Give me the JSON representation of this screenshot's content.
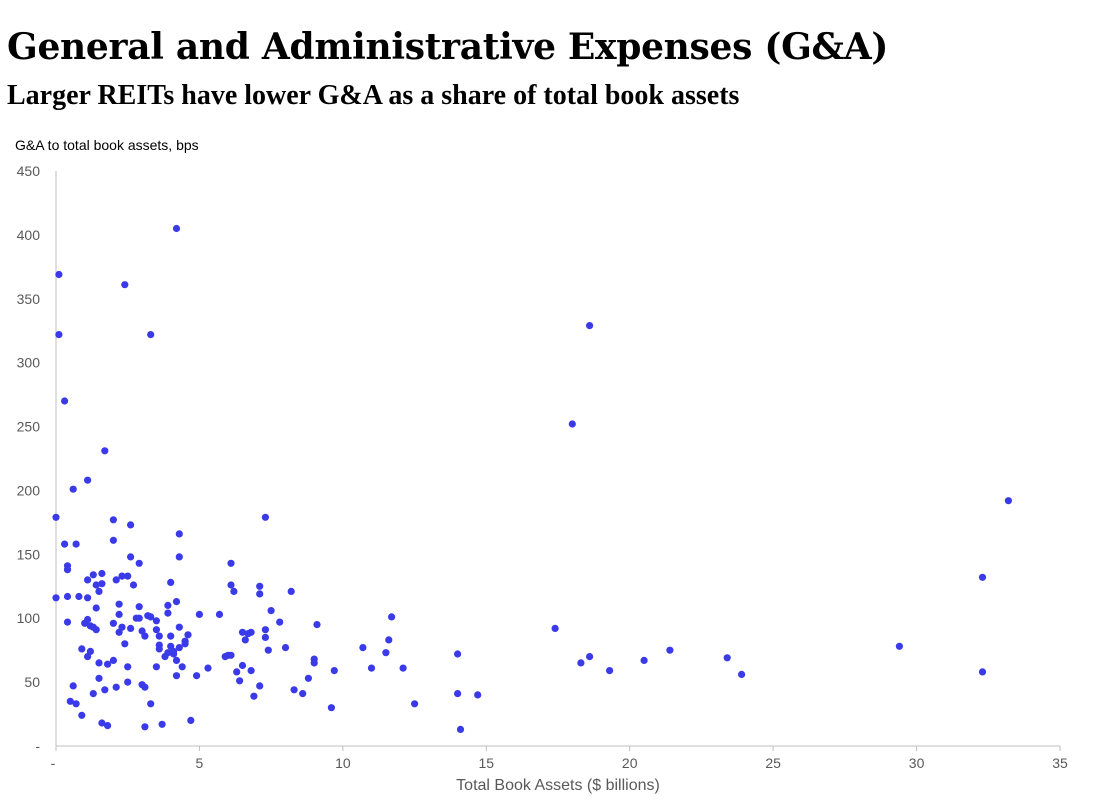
{
  "chart_data": {
    "type": "scatter",
    "title": "General and Administrative Expenses (G&A)",
    "subtitle": "Larger REITs have lower G&A as a share of total book assets",
    "ylabel": "G&A to total book assets, bps",
    "xlabel": "Total Book Assets ($ billions)",
    "xlim": [
      0,
      35
    ],
    "ylim": [
      0,
      450
    ],
    "x_ticks": [
      0,
      5,
      10,
      15,
      20,
      25,
      30,
      35
    ],
    "x_tick_labels": [
      "-",
      "5",
      "10",
      "15",
      "20",
      "25",
      "30",
      "35"
    ],
    "y_ticks": [
      0,
      50,
      100,
      150,
      200,
      250,
      300,
      350,
      400,
      450
    ],
    "y_tick_labels": [
      "-",
      "50",
      "100",
      "150",
      "200",
      "250",
      "300",
      "350",
      "400",
      "450"
    ],
    "grid": false,
    "legend": "none",
    "marker_color": "#3a3ae8",
    "series": [
      {
        "points": [
          [
            0.1,
            369
          ],
          [
            0.1,
            322
          ],
          [
            0.3,
            270
          ],
          [
            0.0,
            179
          ],
          [
            0.0,
            116
          ],
          [
            0.3,
            158
          ],
          [
            0.4,
            141
          ],
          [
            0.4,
            138
          ],
          [
            0.4,
            117
          ],
          [
            0.4,
            97
          ],
          [
            0.6,
            201
          ],
          [
            0.7,
            158
          ],
          [
            0.6,
            47
          ],
          [
            0.5,
            35
          ],
          [
            0.7,
            33
          ],
          [
            0.8,
            117
          ],
          [
            0.9,
            76
          ],
          [
            0.9,
            24
          ],
          [
            1.0,
            96
          ],
          [
            1.1,
            208
          ],
          [
            1.1,
            130
          ],
          [
            1.1,
            116
          ],
          [
            1.1,
            99
          ],
          [
            1.1,
            70
          ],
          [
            1.2,
            94
          ],
          [
            1.2,
            74
          ],
          [
            1.3,
            134
          ],
          [
            1.3,
            93
          ],
          [
            1.3,
            41
          ],
          [
            1.4,
            126
          ],
          [
            1.4,
            108
          ],
          [
            1.4,
            91
          ],
          [
            1.5,
            53
          ],
          [
            1.5,
            121
          ],
          [
            1.6,
            135
          ],
          [
            1.6,
            127
          ],
          [
            1.5,
            65
          ],
          [
            1.6,
            18
          ],
          [
            1.7,
            231
          ],
          [
            1.7,
            44
          ],
          [
            1.8,
            64
          ],
          [
            1.8,
            16
          ],
          [
            2.0,
            177
          ],
          [
            2.0,
            161
          ],
          [
            2.0,
            96
          ],
          [
            2.0,
            67
          ],
          [
            2.1,
            130
          ],
          [
            2.1,
            46
          ],
          [
            2.2,
            111
          ],
          [
            2.2,
            103
          ],
          [
            2.3,
            133
          ],
          [
            2.2,
            89
          ],
          [
            2.3,
            93
          ],
          [
            2.4,
            80
          ],
          [
            2.4,
            361
          ],
          [
            2.5,
            133
          ],
          [
            2.5,
            62
          ],
          [
            2.6,
            173
          ],
          [
            2.6,
            148
          ],
          [
            2.6,
            92
          ],
          [
            2.5,
            50
          ],
          [
            2.7,
            126
          ],
          [
            2.8,
            100
          ],
          [
            2.9,
            143
          ],
          [
            2.9,
            109
          ],
          [
            2.9,
            100
          ],
          [
            3.0,
            90
          ],
          [
            3.0,
            48
          ],
          [
            3.1,
            46
          ],
          [
            3.1,
            15
          ],
          [
            3.1,
            86
          ],
          [
            3.2,
            102
          ],
          [
            3.3,
            101
          ],
          [
            3.3,
            33
          ],
          [
            3.3,
            322
          ],
          [
            3.5,
            98
          ],
          [
            3.5,
            91
          ],
          [
            3.5,
            62
          ],
          [
            3.6,
            86
          ],
          [
            3.6,
            79
          ],
          [
            3.6,
            76
          ],
          [
            3.7,
            17
          ],
          [
            3.8,
            70
          ],
          [
            3.9,
            110
          ],
          [
            3.9,
            104
          ],
          [
            3.9,
            73
          ],
          [
            4.0,
            128
          ],
          [
            4.0,
            86
          ],
          [
            4.0,
            78
          ],
          [
            4.1,
            72
          ],
          [
            4.1,
            74
          ],
          [
            4.2,
            55
          ],
          [
            4.2,
            67
          ],
          [
            4.2,
            113
          ],
          [
            4.2,
            405
          ],
          [
            4.3,
            93
          ],
          [
            4.3,
            77
          ],
          [
            4.3,
            166
          ],
          [
            4.3,
            148
          ],
          [
            4.4,
            62
          ],
          [
            4.5,
            80
          ],
          [
            4.5,
            82
          ],
          [
            4.6,
            87
          ],
          [
            4.7,
            20
          ],
          [
            4.9,
            55
          ],
          [
            5.0,
            103
          ],
          [
            5.3,
            61
          ],
          [
            5.7,
            103
          ],
          [
            5.9,
            70
          ],
          [
            6.0,
            71
          ],
          [
            6.1,
            126
          ],
          [
            6.1,
            143
          ],
          [
            6.1,
            71
          ],
          [
            6.2,
            121
          ],
          [
            6.3,
            58
          ],
          [
            6.4,
            51
          ],
          [
            6.5,
            89
          ],
          [
            6.5,
            63
          ],
          [
            6.6,
            83
          ],
          [
            6.7,
            88
          ],
          [
            6.8,
            59
          ],
          [
            6.8,
            89
          ],
          [
            6.9,
            39
          ],
          [
            7.1,
            47
          ],
          [
            7.1,
            119
          ],
          [
            7.1,
            125
          ],
          [
            7.3,
            85
          ],
          [
            7.3,
            91
          ],
          [
            7.3,
            179
          ],
          [
            7.4,
            75
          ],
          [
            7.5,
            106
          ],
          [
            7.8,
            97
          ],
          [
            8.0,
            77
          ],
          [
            8.2,
            121
          ],
          [
            8.3,
            44
          ],
          [
            8.6,
            41
          ],
          [
            8.8,
            53
          ],
          [
            9.0,
            68
          ],
          [
            9.0,
            65
          ],
          [
            9.1,
            95
          ],
          [
            9.6,
            30
          ],
          [
            9.7,
            59
          ],
          [
            10.7,
            77
          ],
          [
            11.0,
            61
          ],
          [
            11.5,
            73
          ],
          [
            11.6,
            83
          ],
          [
            11.7,
            101
          ],
          [
            12.1,
            61
          ],
          [
            12.5,
            33
          ],
          [
            14.0,
            72
          ],
          [
            14.0,
            41
          ],
          [
            14.1,
            13
          ],
          [
            14.7,
            40
          ],
          [
            17.4,
            92
          ],
          [
            18.0,
            252
          ],
          [
            18.3,
            65
          ],
          [
            18.6,
            70
          ],
          [
            18.6,
            329
          ],
          [
            19.3,
            59
          ],
          [
            20.5,
            67
          ],
          [
            21.4,
            75
          ],
          [
            23.4,
            69
          ],
          [
            23.9,
            56
          ],
          [
            29.4,
            78
          ],
          [
            32.3,
            132
          ],
          [
            32.3,
            58
          ],
          [
            33.2,
            192
          ]
        ]
      }
    ]
  }
}
